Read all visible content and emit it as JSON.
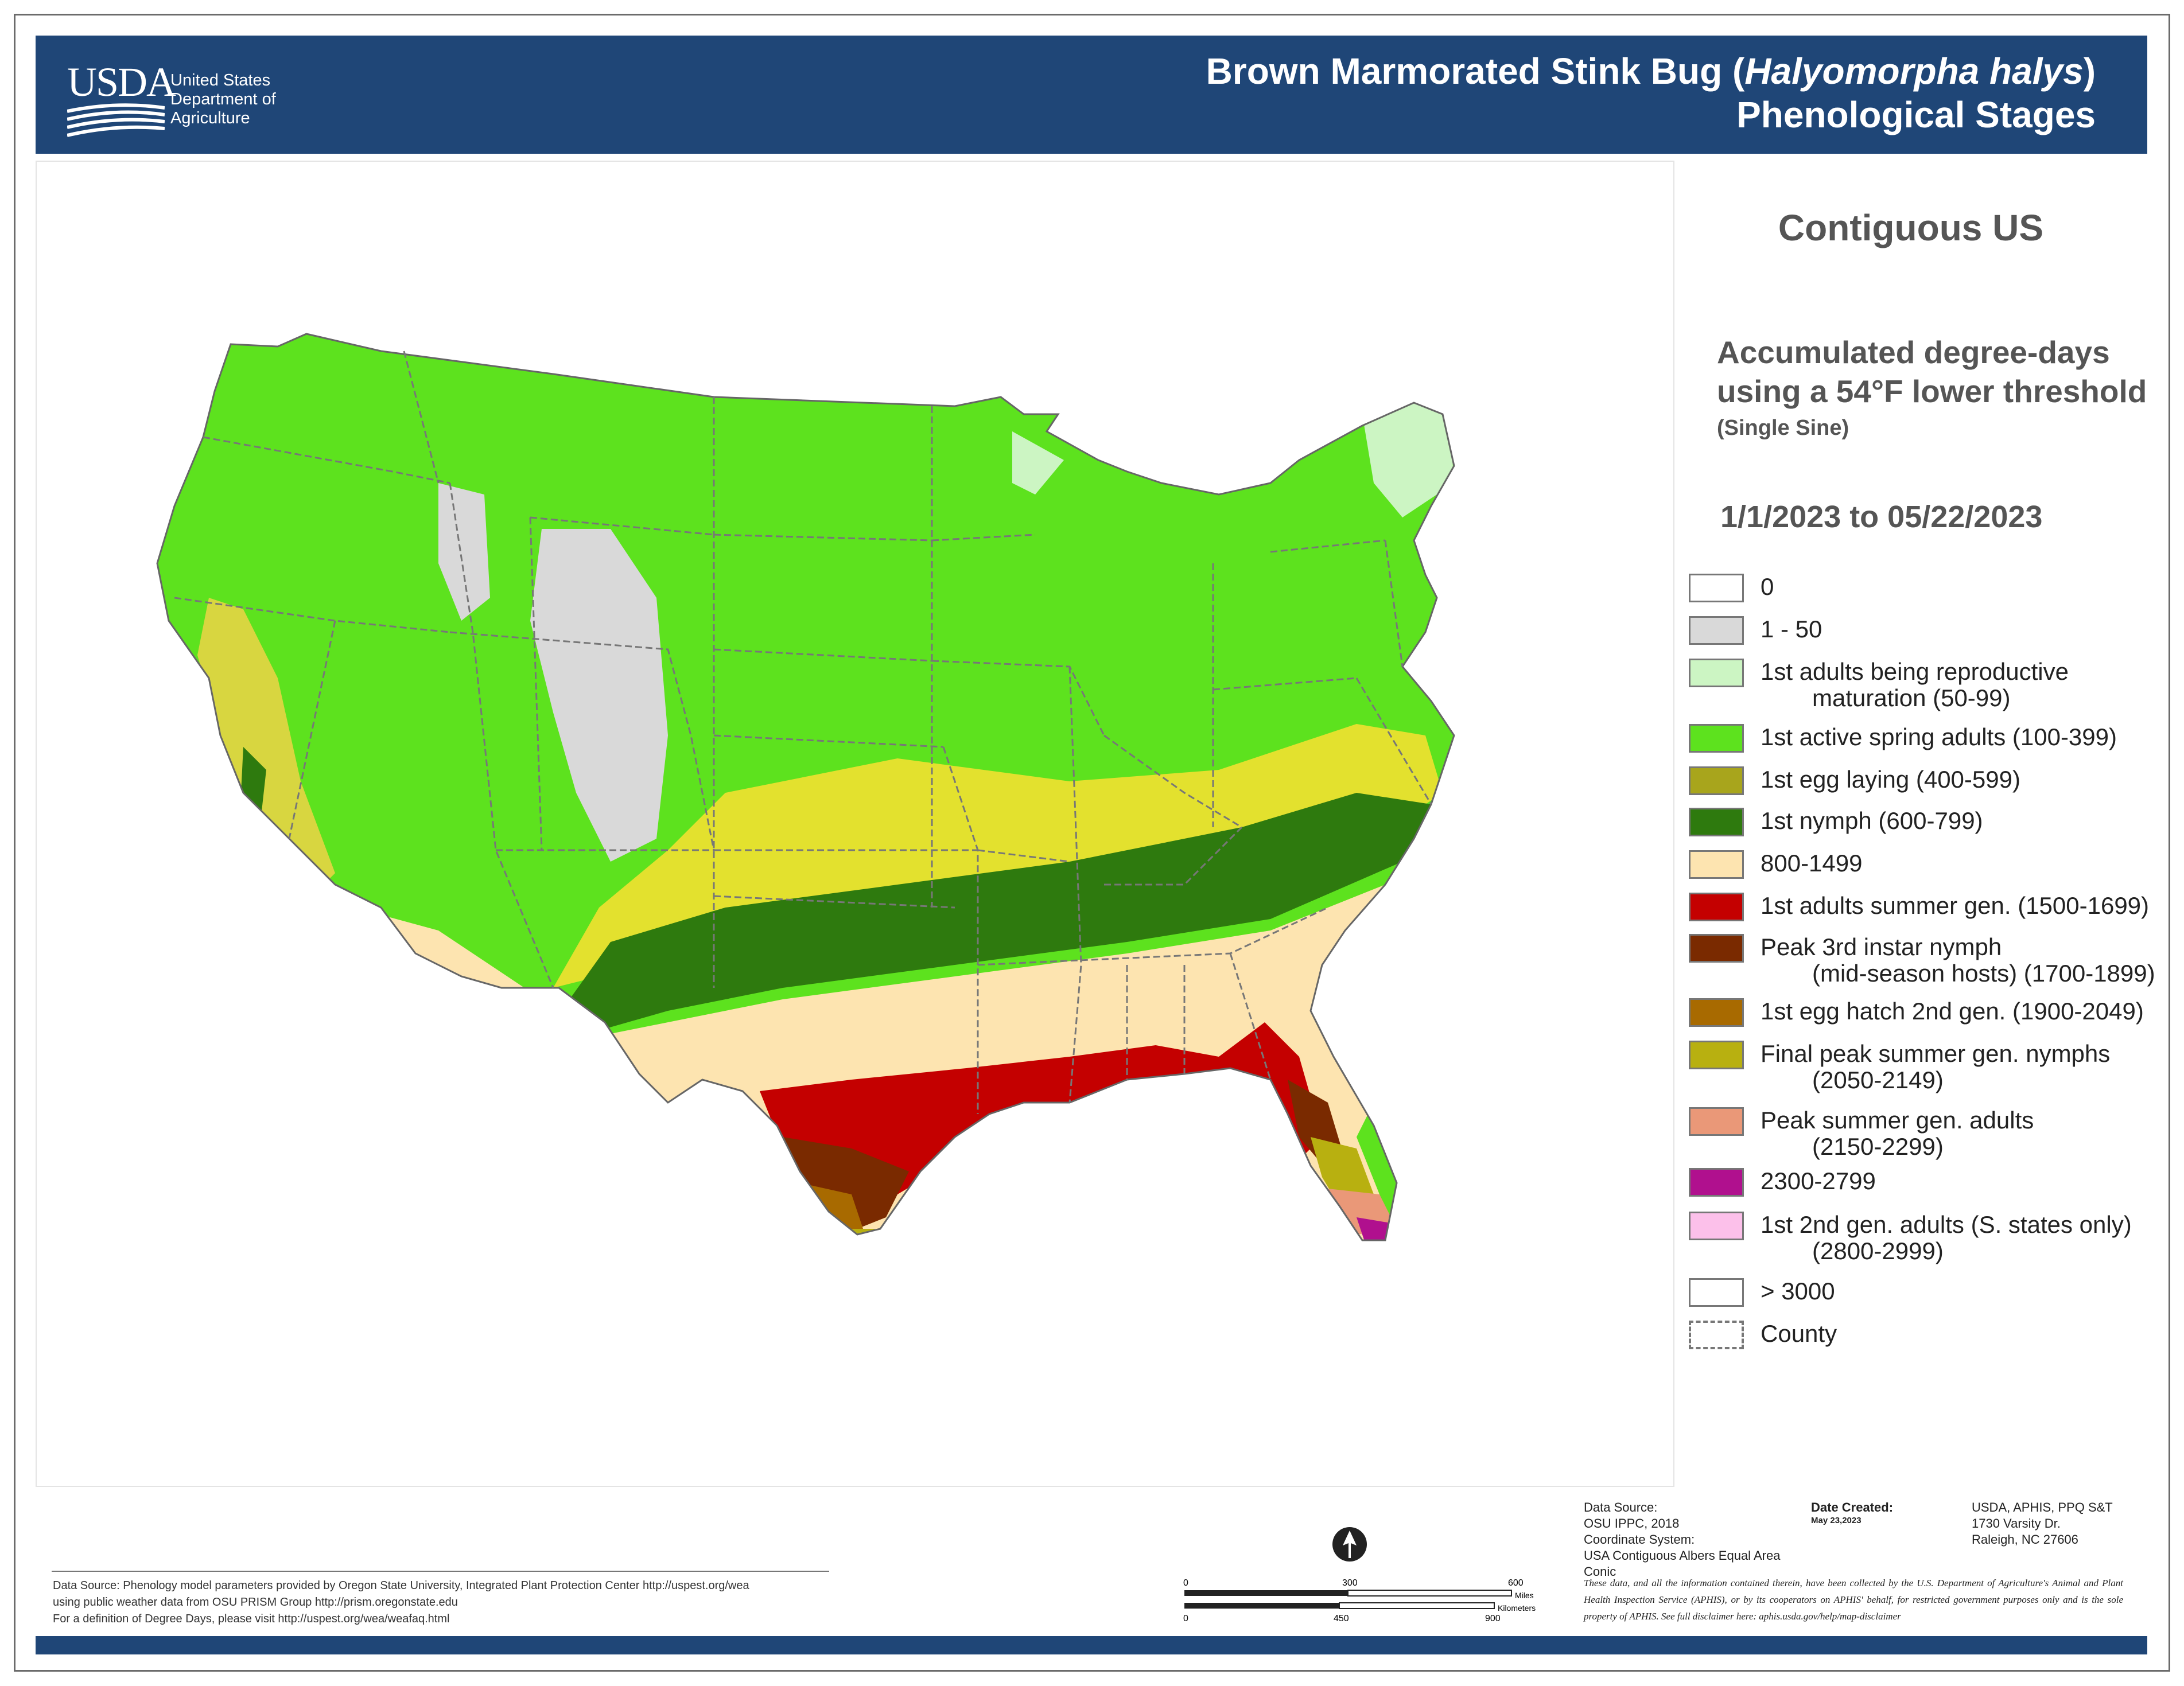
{
  "header": {
    "agency_abbr": "USDA",
    "agency_lines": [
      "United States",
      "Department of",
      "Agriculture"
    ],
    "title_line1_prefix": "Brown Marmorated Stink Bug (",
    "title_line1_italic": "Halyomorpha halys",
    "title_line1_suffix": ")",
    "title_line2": "Phenological Stages"
  },
  "panel": {
    "region": "Contiguous US",
    "dd_line1": "Accumulated degree-days",
    "dd_line2": "using a 54°F lower threshold",
    "dd_method": "(Single Sine)",
    "date_range": "1/1/2023 to 05/22/2023"
  },
  "legend": [
    {
      "lines": [
        "0"
      ],
      "color": "#ffffff"
    },
    {
      "lines": [
        "1 - 50"
      ],
      "color": "#d9d9d9"
    },
    {
      "lines": [
        "1st adults being reproductive",
        "maturation (50-99)"
      ],
      "color": "#ccf5c3"
    },
    {
      "lines": [
        "1st active spring adults (100-399)"
      ],
      "color": "#5de21e"
    },
    {
      "lines": [
        "1st egg laying (400-599)"
      ],
      "color": "#a8a51c"
    },
    {
      "lines": [
        "1st nymph (600-799)"
      ],
      "color": "#2e7a0e"
    },
    {
      "lines": [
        "800-1499"
      ],
      "color": "#fde4b0"
    },
    {
      "lines": [
        "1st adults summer gen. (1500-1699)"
      ],
      "color": "#c40000"
    },
    {
      "lines": [
        "Peak 3rd instar nymph",
        "(mid-season hosts) (1700-1899)"
      ],
      "color": "#7a2a00"
    },
    {
      "lines": [
        "1st egg hatch 2nd gen. (1900-2049)"
      ],
      "color": "#a86a00"
    },
    {
      "lines": [
        "Final peak summer gen. nymphs",
        "(2050-2149)"
      ],
      "color": "#b8b010"
    },
    {
      "lines": [
        "Peak summer gen. adults",
        "(2150-2299)"
      ],
      "color": "#ea9878"
    },
    {
      "lines": [
        "2300-2799"
      ],
      "color": "#b0108e"
    },
    {
      "lines": [
        "1st 2nd gen. adults (S. states only)",
        "(2800-2999)"
      ],
      "color": "#fcc0ea"
    },
    {
      "lines": [
        "> 3000"
      ],
      "color": "#ffffff"
    },
    {
      "lines": [
        "County"
      ],
      "color": "#ffffff"
    }
  ],
  "footer": {
    "source_lines": [
      "Data Source: Phenology model parameters provided by Oregon State University, Integrated Plant Protection Center http://uspest.org/wea",
      "using public weather data from OSU PRISM Group http://prism.oregonstate.edu",
      "For a definition of Degree Days, please visit http://uspest.org/wea/weafaq.html"
    ],
    "scale_miles": [
      "0",
      "300",
      "600"
    ],
    "scale_km": [
      "0",
      "450",
      "900"
    ],
    "scale_unit_miles": "Miles",
    "scale_unit_km": "Kilometers",
    "data_source_label": "Data Source:",
    "data_source_value": "OSU IPPC, 2018",
    "coord_label": "Coordinate System:",
    "coord_value": "USA Contiguous Albers Equal Area Conic",
    "date_created_label": "Date Created:",
    "date_created_value": "May 23,2023",
    "address_lines": [
      "USDA, APHIS, PPQ S&T",
      "1730 Varsity Dr.",
      "Raleigh, NC 27606"
    ],
    "disclaimer": "These data, and all the information contained therein, have been collected by the U.S. Department of Agriculture's Animal and Plant Health Inspection Service (APHIS), or by its cooperators on APHIS' behalf, for restricted government purposes only and is the sole property of APHIS. See full disclaimer here: aphis.usda.gov/help/map-disclaimer"
  }
}
